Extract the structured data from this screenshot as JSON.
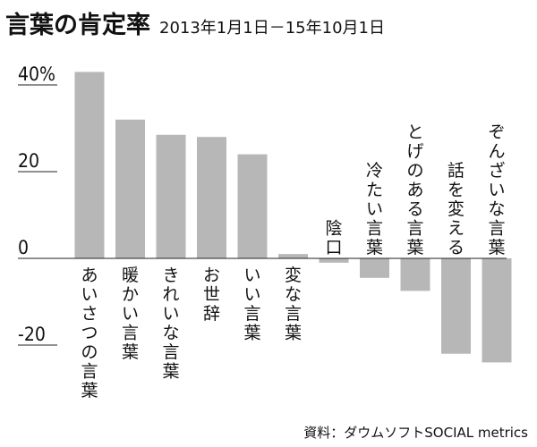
{
  "title": "言葉の肯定率",
  "subtitle": "2013年1月1日－15年10月1日",
  "source": "資料：ダウムソフトSOCIAL metrics",
  "colors": {
    "bar": "#b7b7b7",
    "axis": "#222222",
    "text": "#111111"
  },
  "chart_data": {
    "type": "bar",
    "title": "言葉の肯定率",
    "subtitle": "2013年1月1日－15年10月1日",
    "categories": [
      "あいさつの言葉",
      "暖かい言葉",
      "きれいな言葉",
      "お世辞",
      "いい言葉",
      "変な言葉",
      "陰口",
      "冷たい言葉",
      "とげのある言葉",
      "話を変える",
      "ぞんざいな言葉"
    ],
    "values": [
      43,
      32,
      28.5,
      28,
      24,
      1,
      -1,
      -4.5,
      -7.5,
      -22,
      -24
    ],
    "ylim": [
      -25,
      45
    ],
    "ytick_values": [
      40,
      20,
      0,
      -20
    ],
    "ytick_labels": [
      "40%",
      "20",
      "0",
      "-20"
    ],
    "xlabel": "",
    "ylabel": "",
    "grid": false,
    "legend": "none"
  }
}
